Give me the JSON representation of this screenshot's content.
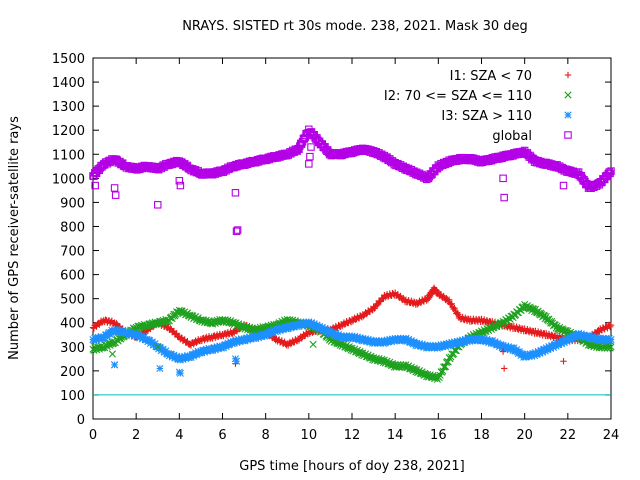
{
  "chart_data": {
    "type": "scatter",
    "title": "NRAYS. SISTED rt 30s mode. 238, 2021. Mask 30 deg",
    "xlabel": "GPS time [hours of doy 238, 2021]",
    "ylabel": "Number of GPS receiver-satellite rays",
    "xlim": [
      0,
      24
    ],
    "ylim": [
      0,
      1500
    ],
    "xticks": [
      0,
      2,
      4,
      6,
      8,
      10,
      12,
      14,
      16,
      18,
      20,
      22,
      24
    ],
    "yticks": [
      0,
      100,
      200,
      300,
      400,
      500,
      600,
      700,
      800,
      900,
      1000,
      1100,
      1200,
      1300,
      1400,
      1500
    ],
    "reference_line": {
      "y": 100,
      "color": "#00c0c0"
    },
    "legend_position": "top-right",
    "series": [
      {
        "name": "I1: SZA < 70",
        "marker": "plus",
        "color": "#e41a1c",
        "x": [
          0,
          0.5,
          1,
          1.5,
          2,
          2.5,
          3,
          3.5,
          4,
          4.5,
          5,
          5.5,
          6,
          6.5,
          7,
          7.5,
          8,
          8.5,
          9,
          9.5,
          10,
          10.5,
          11,
          11.5,
          12,
          12.5,
          13,
          13.5,
          14,
          14.5,
          15,
          15.5,
          15.8,
          16,
          16.5,
          17,
          17.5,
          18,
          18.5,
          19,
          19.5,
          20,
          20.5,
          21,
          21.5,
          22,
          22.5,
          23,
          23.5,
          24
        ],
        "y": [
          380,
          410,
          400,
          360,
          340,
          370,
          400,
          380,
          340,
          310,
          330,
          340,
          350,
          360,
          390,
          370,
          360,
          330,
          310,
          330,
          360,
          370,
          370,
          390,
          410,
          430,
          460,
          510,
          520,
          490,
          480,
          500,
          540,
          520,
          490,
          420,
          410,
          410,
          400,
          390,
          380,
          370,
          360,
          350,
          340,
          330,
          330,
          340,
          370,
          390
        ]
      },
      {
        "name": "I2: 70 <= SZA <= 110",
        "marker": "cross",
        "color": "#1fa11f",
        "x": [
          0,
          0.5,
          1,
          1.5,
          2,
          2.5,
          3,
          3.5,
          4,
          4.5,
          5,
          5.5,
          6,
          6.5,
          7,
          7.5,
          8,
          8.5,
          9,
          9.5,
          10,
          10.5,
          11,
          11.5,
          12,
          12.5,
          13,
          13.5,
          14,
          14.5,
          15,
          15.5,
          16,
          16.5,
          17,
          17.5,
          18,
          18.5,
          19,
          19.5,
          20,
          20.5,
          21,
          21.5,
          22,
          22.5,
          23,
          23.5,
          24
        ],
        "y": [
          290,
          300,
          320,
          350,
          380,
          390,
          400,
          410,
          450,
          430,
          410,
          400,
          410,
          400,
          380,
          370,
          380,
          390,
          410,
          400,
          390,
          370,
          330,
          310,
          290,
          270,
          250,
          240,
          220,
          220,
          200,
          180,
          170,
          250,
          310,
          340,
          360,
          380,
          400,
          430,
          470,
          450,
          420,
          380,
          360,
          340,
          310,
          300,
          300
        ]
      },
      {
        "name": "I3: SZA > 110",
        "marker": "star",
        "color": "#1e90ff",
        "x": [
          0,
          0.5,
          1,
          1.5,
          2,
          2.5,
          3,
          3.5,
          4,
          4.5,
          5,
          5.5,
          6,
          6.5,
          7,
          7.5,
          8,
          8.5,
          9,
          9.5,
          10,
          10.5,
          11,
          11.5,
          12,
          12.5,
          13,
          13.5,
          14,
          14.5,
          15,
          15.5,
          16,
          16.5,
          17,
          17.5,
          18,
          18.5,
          19,
          19.5,
          20,
          20.5,
          21,
          21.5,
          22,
          22.5,
          23,
          23.5,
          24
        ],
        "y": [
          330,
          340,
          370,
          360,
          350,
          330,
          300,
          270,
          250,
          260,
          280,
          290,
          300,
          320,
          330,
          340,
          350,
          370,
          380,
          390,
          400,
          380,
          360,
          340,
          340,
          330,
          320,
          320,
          330,
          330,
          310,
          300,
          300,
          310,
          320,
          330,
          330,
          320,
          300,
          290,
          260,
          270,
          290,
          310,
          330,
          350,
          340,
          330,
          330
        ]
      },
      {
        "name": "global",
        "marker": "square",
        "color": "#b400e6",
        "x": [
          0,
          0.5,
          1,
          1.5,
          2,
          2.5,
          3,
          3.5,
          4,
          4.5,
          5,
          5.5,
          6,
          6.5,
          7,
          7.5,
          8,
          8.5,
          9,
          9.5,
          10,
          10.5,
          11,
          11.5,
          12,
          12.5,
          13,
          13.5,
          14,
          14.5,
          15,
          15.5,
          16,
          16.5,
          17,
          17.5,
          18,
          18.5,
          19,
          19.5,
          20,
          20.5,
          21,
          21.5,
          22,
          22.5,
          23,
          23.5,
          24
        ],
        "y": [
          1010,
          1060,
          1080,
          1050,
          1040,
          1050,
          1040,
          1060,
          1070,
          1040,
          1020,
          1020,
          1030,
          1050,
          1060,
          1070,
          1080,
          1090,
          1100,
          1120,
          1200,
          1150,
          1100,
          1100,
          1110,
          1120,
          1110,
          1090,
          1060,
          1040,
          1020,
          1000,
          1050,
          1070,
          1080,
          1080,
          1070,
          1080,
          1090,
          1100,
          1110,
          1070,
          1060,
          1050,
          1030,
          1020,
          960,
          980,
          1030
        ]
      }
    ],
    "outliers": [
      {
        "series": "I1: SZA < 70",
        "x": [
          6.6,
          19,
          19.05,
          21.8
        ],
        "y": [
          230,
          280,
          210,
          240
        ]
      },
      {
        "series": "I2: 70 <= SZA <= 110",
        "x": [
          0.9,
          1,
          3,
          10.2
        ],
        "y": [
          270,
          225,
          300,
          310
        ]
      },
      {
        "series": "I3: SZA > 110",
        "x": [
          1,
          3.1,
          4,
          4.05,
          6.6,
          6.65
        ],
        "y": [
          225,
          210,
          195,
          190,
          250,
          240
        ]
      },
      {
        "series": "global",
        "x": [
          0.1,
          1,
          1.05,
          3,
          4,
          4.05,
          6.6,
          6.65,
          6.7,
          10,
          10.05,
          10.1,
          19,
          19.05,
          21.8
        ],
        "y": [
          970,
          960,
          930,
          890,
          990,
          970,
          940,
          780,
          785,
          1060,
          1090,
          1130,
          1000,
          920,
          970
        ]
      }
    ]
  }
}
